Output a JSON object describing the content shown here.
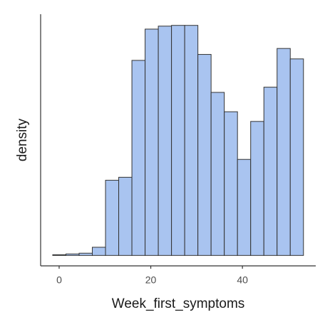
{
  "chart_data": {
    "type": "histogram",
    "x_label": "Week_first_symptoms",
    "y_label": "density",
    "bins": [
      -1.4,
      1.48,
      4.36,
      7.24,
      10.12,
      13.0,
      15.88,
      18.76,
      21.64,
      24.52,
      27.4,
      30.28,
      33.16,
      36.04,
      38.92,
      41.8,
      44.68,
      47.56,
      50.44,
      53.32
    ],
    "values": [
      0.0001,
      0.0002,
      0.0003,
      0.0011,
      0.0101,
      0.0105,
      0.0262,
      0.0304,
      0.0308,
      0.0309,
      0.0309,
      0.027,
      0.0219,
      0.0193,
      0.0129,
      0.018,
      0.0226,
      0.0278,
      0.0264
    ],
    "color": "#a9c4f0",
    "xlim": [
      -4.04,
      56.0
    ],
    "xticks": [
      0,
      20,
      40
    ],
    "ylim": [
      -0.0014,
      0.0324
    ]
  }
}
